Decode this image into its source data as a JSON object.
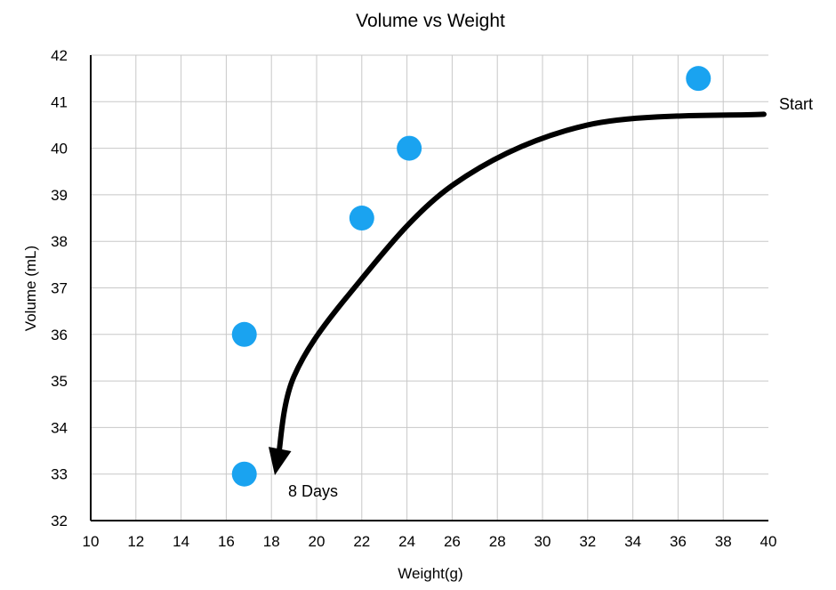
{
  "chart_data": {
    "type": "scatter",
    "title": "Volume vs Weight",
    "xlabel": "Weight(g)",
    "ylabel": "Volume (mL)",
    "xlim": [
      10,
      40
    ],
    "ylim": [
      32,
      42
    ],
    "x_ticks": [
      "10",
      "12",
      "14",
      "16",
      "18",
      "20",
      "22",
      "24",
      "26",
      "28",
      "30",
      "32",
      "34",
      "36",
      "38",
      "40"
    ],
    "y_ticks": [
      "32",
      "33",
      "34",
      "35",
      "36",
      "37",
      "38",
      "39",
      "40",
      "41",
      "42"
    ],
    "grid": true,
    "point_color": "#1aa3f0",
    "points": [
      {
        "x": 16.8,
        "y": 33.0
      },
      {
        "x": 16.8,
        "y": 36.0
      },
      {
        "x": 22.0,
        "y": 38.5
      },
      {
        "x": 24.1,
        "y": 40.0
      },
      {
        "x": 36.9,
        "y": 41.5
      }
    ],
    "arrow": {
      "start_label": "Start",
      "end_label": "8 Days",
      "path": [
        {
          "x": 39.8,
          "y": 40.73
        },
        {
          "x": 32.0,
          "y": 40.5
        },
        {
          "x": 26.0,
          "y": 39.2
        },
        {
          "x": 21.5,
          "y": 36.9
        },
        {
          "x": 19.0,
          "y": 35.1
        },
        {
          "x": 18.3,
          "y": 33.35
        }
      ]
    }
  }
}
